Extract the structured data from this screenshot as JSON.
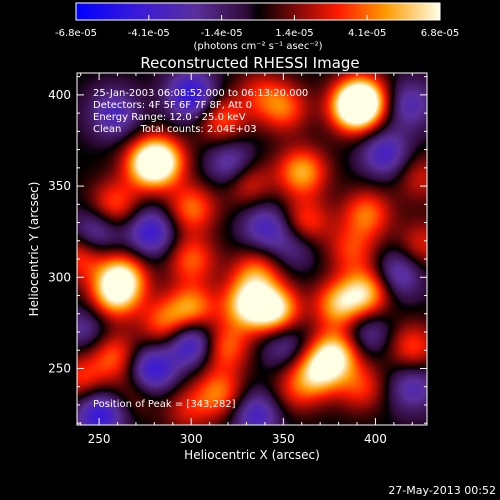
{
  "chart_data": {
    "type": "heatmap",
    "title": "Reconstructed RHESSI Image",
    "xlabel": "Heliocentric X (arcsec)",
    "ylabel": "Heliocentric Y (arcsec)",
    "xlim": [
      238,
      428
    ],
    "ylim": [
      219,
      412
    ],
    "x_ticks": [
      250,
      300,
      350,
      400
    ],
    "y_ticks": [
      250,
      300,
      350,
      400
    ],
    "colorbar": {
      "range": [
        -6.8e-05,
        6.8e-05
      ],
      "tick_labels": [
        "-6.8e-05",
        "-4.1e-05",
        "-1.4e-05",
        "1.4e-05",
        "4.1e-05",
        "6.8e-05"
      ],
      "unit_label": "(photons cm⁻² s⁻¹ asec⁻²)"
    },
    "annotations": [
      "25-Jan-2003 06:08:52.000 to 06:13:20.000",
      "Detectors: 4F 5F 6F 7F 8F, Att 0",
      "Energy Range: 12.0 - 25.0 keV",
      "Clean      Total counts: 2.04E+03"
    ],
    "peak_label": "Position of Peak = [343,282]",
    "peak_position": [
      343,
      282
    ],
    "blobs": [
      {
        "x": 393,
        "y": 397,
        "v": 1.0
      },
      {
        "x": 388,
        "y": 393,
        "v": 0.9
      },
      {
        "x": 316,
        "y": 387,
        "v": 0.55
      },
      {
        "x": 337,
        "y": 401,
        "v": 0.35
      },
      {
        "x": 350,
        "y": 393,
        "v": 0.55
      },
      {
        "x": 283,
        "y": 364,
        "v": 0.9
      },
      {
        "x": 276,
        "y": 362,
        "v": 0.7
      },
      {
        "x": 360,
        "y": 358,
        "v": 0.75
      },
      {
        "x": 330,
        "y": 353,
        "v": 0.5
      },
      {
        "x": 258,
        "y": 340,
        "v": 0.55
      },
      {
        "x": 300,
        "y": 338,
        "v": 0.6
      },
      {
        "x": 362,
        "y": 330,
        "v": 0.55
      },
      {
        "x": 395,
        "y": 335,
        "v": 0.6
      },
      {
        "x": 387,
        "y": 315,
        "v": 0.45
      },
      {
        "x": 240,
        "y": 312,
        "v": 0.5
      },
      {
        "x": 262,
        "y": 300,
        "v": 0.9
      },
      {
        "x": 258,
        "y": 290,
        "v": 0.7
      },
      {
        "x": 300,
        "y": 310,
        "v": 0.55
      },
      {
        "x": 335,
        "y": 302,
        "v": 0.6
      },
      {
        "x": 345,
        "y": 282,
        "v": 1.0
      },
      {
        "x": 330,
        "y": 285,
        "v": 0.85
      },
      {
        "x": 300,
        "y": 283,
        "v": 0.7
      },
      {
        "x": 285,
        "y": 275,
        "v": 0.55
      },
      {
        "x": 380,
        "y": 285,
        "v": 0.75
      },
      {
        "x": 395,
        "y": 292,
        "v": 0.8
      },
      {
        "x": 318,
        "y": 262,
        "v": 0.6
      },
      {
        "x": 378,
        "y": 258,
        "v": 0.9
      },
      {
        "x": 368,
        "y": 248,
        "v": 0.75
      },
      {
        "x": 392,
        "y": 240,
        "v": 0.45
      },
      {
        "x": 356,
        "y": 238,
        "v": 0.35
      },
      {
        "x": 258,
        "y": 257,
        "v": 0.55
      },
      {
        "x": 240,
        "y": 245,
        "v": 0.45
      },
      {
        "x": 315,
        "y": 237,
        "v": 0.6
      },
      {
        "x": 298,
        "y": 228,
        "v": 0.35
      },
      {
        "x": 420,
        "y": 262,
        "v": 0.5
      },
      {
        "x": 270,
        "y": 238,
        "v": 0.3
      },
      {
        "x": 424,
        "y": 355,
        "v": 0.35
      },
      {
        "x": 425,
        "y": 318,
        "v": 0.4
      },
      {
        "x": 335,
        "y": 225,
        "v": -0.55
      },
      {
        "x": 278,
        "y": 249,
        "v": -0.75
      },
      {
        "x": 300,
        "y": 265,
        "v": -0.75
      },
      {
        "x": 250,
        "y": 225,
        "v": -0.7
      },
      {
        "x": 340,
        "y": 328,
        "v": -0.5
      },
      {
        "x": 300,
        "y": 400,
        "v": -0.75
      },
      {
        "x": 258,
        "y": 390,
        "v": -0.5
      },
      {
        "x": 322,
        "y": 362,
        "v": -0.55
      },
      {
        "x": 405,
        "y": 368,
        "v": -0.55
      },
      {
        "x": 248,
        "y": 325,
        "v": -0.5
      },
      {
        "x": 278,
        "y": 325,
        "v": -0.65
      },
      {
        "x": 412,
        "y": 302,
        "v": -0.5
      },
      {
        "x": 350,
        "y": 264,
        "v": -0.4
      },
      {
        "x": 395,
        "y": 270,
        "v": -0.4
      },
      {
        "x": 420,
        "y": 240,
        "v": -0.45
      },
      {
        "x": 418,
        "y": 395,
        "v": -0.45
      },
      {
        "x": 242,
        "y": 272,
        "v": -0.35
      },
      {
        "x": 356,
        "y": 318,
        "v": -0.35
      }
    ]
  },
  "footer_date": "27-May-2013 00:52"
}
